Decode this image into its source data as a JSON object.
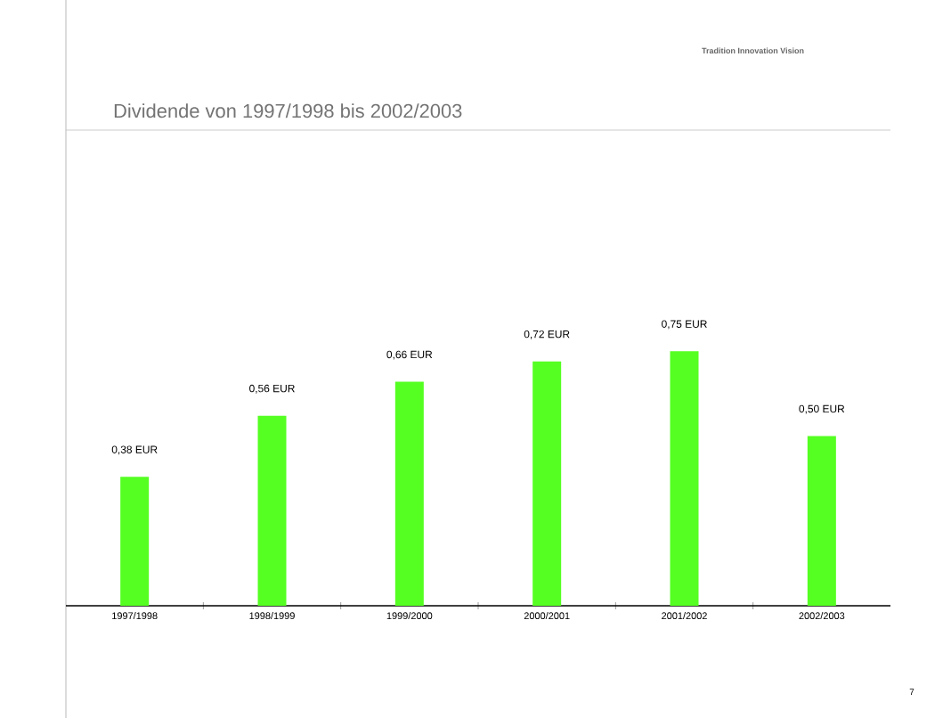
{
  "chart_data": {
    "type": "bar",
    "title": "Dividende von 1997/1998 bis 2002/2003",
    "categories": [
      "1997/1998",
      "1998/1999",
      "1999/2000",
      "2000/2001",
      "2001/2002",
      "2002/2003"
    ],
    "values": [
      0.38,
      0.56,
      0.66,
      0.72,
      0.75,
      0.5
    ],
    "value_labels": [
      "0,38 EUR",
      "0,56 EUR",
      "0,66 EUR",
      "0,72 EUR",
      "0,75 EUR",
      "0,50 EUR"
    ],
    "color": "#55ff22",
    "annotations": [
      "Tradition  Innovation  Vision",
      "7"
    ]
  }
}
